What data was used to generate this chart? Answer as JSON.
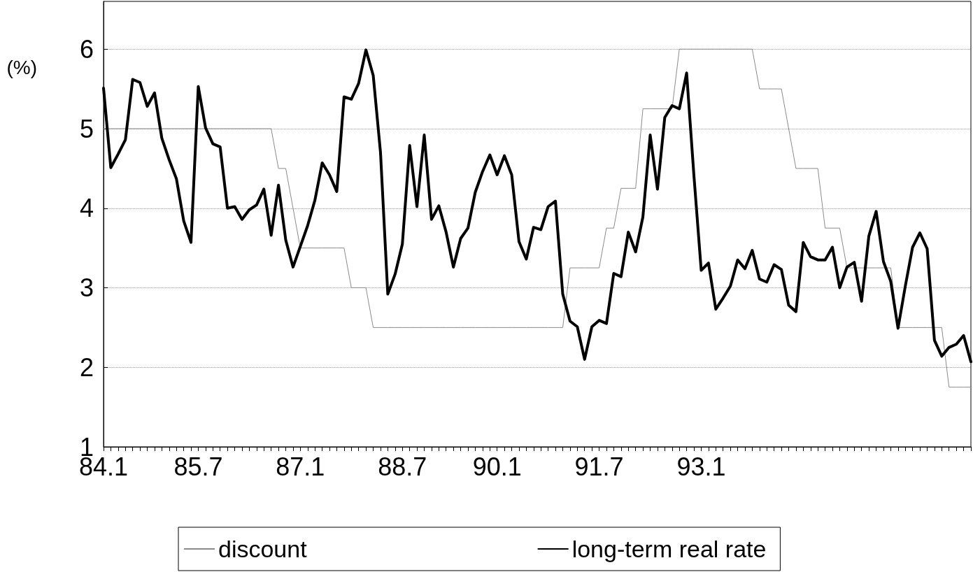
{
  "chart_data": {
    "type": "line",
    "ylabel": "(%)",
    "categories": [
      "84.1",
      null,
      null,
      null,
      null,
      null,
      null,
      null,
      null,
      null,
      null,
      null,
      null,
      "85.7",
      null,
      null,
      null,
      null,
      null,
      null,
      null,
      null,
      null,
      null,
      null,
      null,
      null,
      "87.1",
      null,
      null,
      null,
      null,
      null,
      null,
      null,
      null,
      null,
      null,
      null,
      null,
      null,
      "88.7",
      null,
      null,
      null,
      null,
      null,
      null,
      null,
      null,
      null,
      null,
      null,
      null,
      "90.1",
      null,
      null,
      null,
      null,
      null,
      null,
      null,
      null,
      null,
      null,
      null,
      null,
      null,
      "91.7",
      null,
      null,
      null,
      null,
      null,
      null,
      null,
      null,
      null,
      null,
      null,
      null,
      null,
      "93.1",
      null,
      null,
      null,
      null,
      null,
      null,
      null,
      null,
      null,
      null,
      null,
      null,
      null,
      null,
      null,
      null,
      null,
      null,
      null,
      null,
      null,
      null,
      null,
      null,
      null,
      null,
      null,
      null,
      null,
      null,
      null,
      null,
      null,
      null,
      null,
      null,
      null
    ],
    "series": [
      {
        "name": "discount",
        "color": "#8a8a8a",
        "values": [
          5,
          5,
          5,
          5,
          5,
          5,
          5,
          5,
          5,
          5,
          5,
          5,
          5,
          5,
          5,
          5,
          5,
          5,
          5,
          5,
          5,
          5,
          5,
          5,
          4.5,
          4.5,
          4,
          3.5,
          3.5,
          3.5,
          3.5,
          3.5,
          3.5,
          3.5,
          3,
          3,
          3,
          2.5,
          2.5,
          2.5,
          2.5,
          2.5,
          2.5,
          2.5,
          2.5,
          2.5,
          2.5,
          2.5,
          2.5,
          2.5,
          2.5,
          2.5,
          2.5,
          2.5,
          2.5,
          2.5,
          2.5,
          2.5,
          2.5,
          2.5,
          2.5,
          2.5,
          2.5,
          2.5,
          3.25,
          3.25,
          3.25,
          3.25,
          3.25,
          3.75,
          3.75,
          4.25,
          4.25,
          4.25,
          5.25,
          5.25,
          5.25,
          5.25,
          5.25,
          6,
          6,
          6,
          6,
          6,
          6,
          6,
          6,
          6,
          6,
          6,
          5.5,
          5.5,
          5.5,
          5.5,
          5,
          4.5,
          4.5,
          4.5,
          4.5,
          3.75,
          3.75,
          3.75,
          3.25,
          3.25,
          3.25,
          3.25,
          3.25,
          3.25,
          3.25,
          2.5,
          2.5,
          2.5,
          2.5,
          2.5,
          2.5,
          2.5,
          1.75,
          1.75,
          1.75,
          1.75
        ]
      },
      {
        "name": "long-term real rate",
        "color": "#000000",
        "values": [
          5.51,
          4.51,
          4.68,
          4.86,
          5.62,
          5.58,
          5.28,
          5.45,
          4.88,
          4.61,
          4.37,
          3.84,
          3.57,
          5.53,
          5.01,
          4.81,
          4.77,
          4.0,
          4.02,
          3.86,
          3.98,
          4.04,
          4.24,
          3.66,
          4.29,
          3.6,
          3.26,
          3.52,
          3.78,
          4.1,
          4.57,
          4.42,
          4.21,
          5.4,
          5.37,
          5.57,
          5.99,
          5.67,
          4.7,
          2.92,
          3.17,
          3.55,
          4.79,
          4.02,
          4.92,
          3.86,
          4.03,
          3.7,
          3.26,
          3.62,
          3.75,
          4.2,
          4.46,
          4.67,
          4.42,
          4.66,
          4.42,
          3.58,
          3.36,
          3.76,
          3.73,
          4.02,
          4.09,
          2.92,
          2.58,
          2.51,
          2.1,
          2.51,
          2.59,
          2.55,
          3.18,
          3.14,
          3.7,
          3.45,
          3.89,
          4.92,
          4.24,
          5.14,
          5.29,
          5.25,
          5.7,
          4.41,
          3.22,
          3.31,
          2.73,
          2.87,
          3.02,
          3.35,
          3.24,
          3.47,
          3.11,
          3.07,
          3.29,
          3.23,
          2.78,
          2.7,
          3.57,
          3.39,
          3.35,
          3.35,
          3.51,
          3.0,
          3.26,
          3.32,
          2.83,
          3.65,
          3.96,
          3.33,
          3.08,
          2.49,
          3.02,
          3.51,
          3.69,
          3.49,
          2.34,
          2.14,
          2.25,
          2.29,
          2.4,
          2.07
        ]
      }
    ],
    "ylim": [
      1,
      6.6
    ],
    "yticks": [
      1,
      2,
      3,
      4,
      5,
      6
    ],
    "grid": "y",
    "legend": "bottom",
    "marker": "none",
    "line_style": "solid"
  }
}
